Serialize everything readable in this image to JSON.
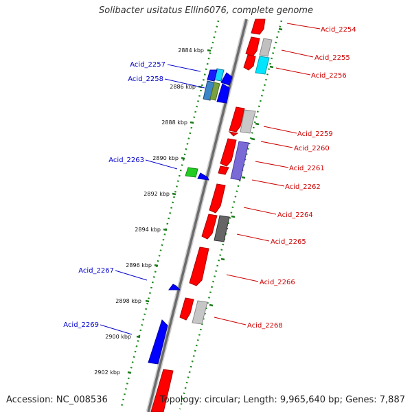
{
  "title": "Solibacter usitatus Ellin6076, complete genome",
  "accession": "Accession: NC_008536",
  "topology": "Topology: circular; Length: 9,965,640 bp; Genes: 7,887",
  "colors": {
    "forward": "#ff0000",
    "reverse": "#0000ff",
    "left_label": "#0000cc",
    "right_label": "#cc0000",
    "tick": "#1a7a1a",
    "dotted_track": "#1a8a1a",
    "backbone": "#777777"
  },
  "ticks": [
    "2884 kbp",
    "2886 kbp",
    "2888 kbp",
    "2890 kbp",
    "2892 kbp",
    "2894 kbp",
    "2896 kbp",
    "2898 kbp",
    "2900 kbp",
    "2902 kbp"
  ],
  "left_labels": [
    "Acid_2257",
    "Acid_2258",
    "Acid_2263",
    "Acid_2267",
    "Acid_2269"
  ],
  "right_labels": [
    "Acid_2254",
    "Acid_2255",
    "Acid_2256",
    "Acid_2259",
    "Acid_2260",
    "Acid_2261",
    "Acid_2262",
    "Acid_2264",
    "Acid_2265",
    "Acid_2266",
    "Acid_2268"
  ]
}
